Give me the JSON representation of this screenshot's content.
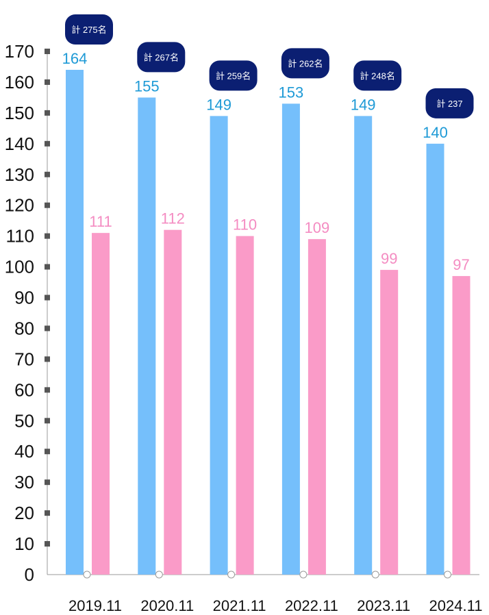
{
  "chart_data": {
    "type": "bar",
    "categories": [
      "2019.11",
      "2020.11",
      "2021.11",
      "2022.11",
      "2023.11",
      "2024.11"
    ],
    "series": [
      {
        "values": [
          164,
          155,
          149,
          153,
          149,
          140
        ],
        "color": "#75BFFB",
        "label_color": "#1E9AD6"
      },
      {
        "values": [
          111,
          112,
          110,
          109,
          99,
          97
        ],
        "color": "#FA9BC8",
        "label_color": "#F48CC2"
      }
    ],
    "totals": [
      "計 275名",
      "計 267名",
      "計 259名",
      "計 262名",
      "計 248名",
      "計 237"
    ],
    "ylim": [
      0,
      170
    ],
    "yticks": [
      0,
      10,
      20,
      30,
      40,
      50,
      60,
      70,
      80,
      90,
      100,
      110,
      120,
      130,
      140,
      150,
      160,
      170
    ],
    "total_badge_color": "#0B1F72",
    "grid": false,
    "legend": "none"
  }
}
